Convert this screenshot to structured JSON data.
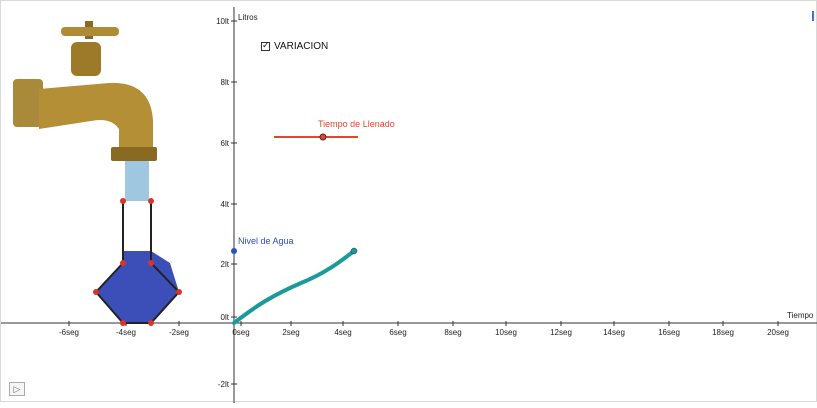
{
  "axes": {
    "x_name": "Tiempo",
    "y_name": "Litros",
    "x_ticks": [
      "-6seg",
      "-4seg",
      "-2seg",
      "0seg",
      "2seg",
      "4seg",
      "6seg",
      "8seg",
      "10seg",
      "12seg",
      "14seg",
      "16seg",
      "18seg",
      "20seg"
    ],
    "y_ticks": [
      "-2lt",
      "0lt",
      "2lt",
      "4lt",
      "6lt",
      "8lt",
      "10lt"
    ]
  },
  "checkbox": {
    "label": "VARIACION",
    "checked": true
  },
  "slider": {
    "label": "Tiempo de Llenado",
    "color": "#e8442a"
  },
  "point": {
    "label": "Nivel de Agua",
    "color": "#2b4fbf"
  },
  "curve": {
    "color": "#1a9a9a"
  },
  "colors": {
    "water": "#3c4fb8",
    "frame": "#d9342b",
    "stream": "#9fc8e0"
  },
  "icons": {
    "faucet": "faucet-icon",
    "play": "play-icon"
  }
}
